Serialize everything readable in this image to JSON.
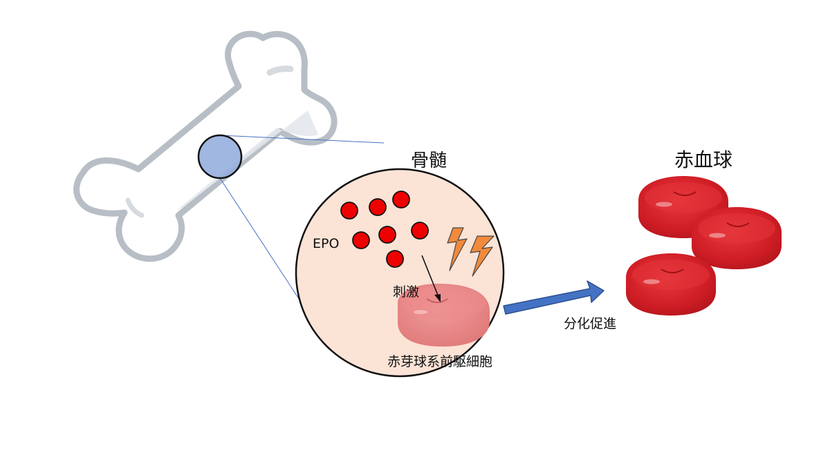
{
  "labels": {
    "bone_marrow": "骨髄",
    "red_blood_cells": "赤血球",
    "epo": "EPO",
    "stimulation": "刺激",
    "progenitor": "赤芽球系前駆細胞",
    "differentiation": "分化促進"
  },
  "icons": {
    "bone": "bone-icon",
    "magnifier": "zoom-circle-icon",
    "epo_molecule": "epo-dot-icon",
    "lightning": "lightning-icon",
    "progenitor_cell": "progenitor-cell-icon",
    "red_blood_cell": "red-blood-cell-icon"
  },
  "colors": {
    "marrow_fill": "#fbe3d6",
    "epo_dot": "#ee0000",
    "lightning": "#f08a3c",
    "progenitor": "#e88585",
    "rbc": "#d42027",
    "arrow": "#4472c4",
    "zoom_circle": "#8faadc"
  }
}
